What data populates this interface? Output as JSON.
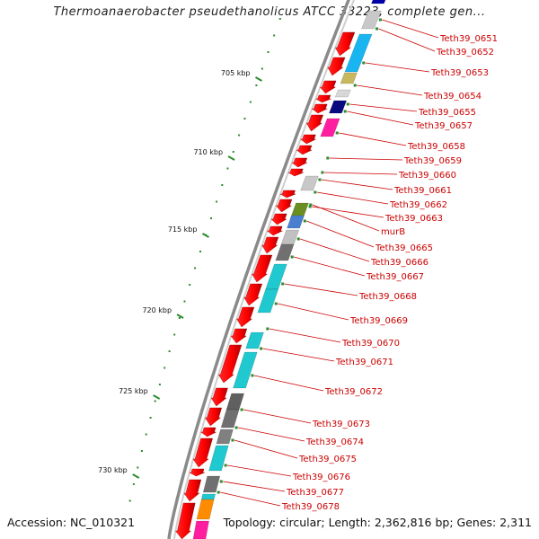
{
  "title": "Thermoanaerobacter pseudethanolicus ATCC 33223, complete gen...",
  "footer": {
    "accession": "Accession: NC_010321",
    "summary": "Topology: circular; Length: 2,362,816 bp; Genes: 2,311"
  },
  "scale_labels": [
    "705 kbp",
    "710 kbp",
    "715 kbp",
    "720 kbp",
    "725 kbp",
    "730 kbp"
  ],
  "gene_labels": [
    "Teth39_0651",
    "Teth39_0652",
    "Teth39_0653",
    "Teth39_0654",
    "Teth39_0655",
    "Teth39_0657",
    "Teth39_0658",
    "Teth39_0659",
    "Teth39_0660",
    "Teth39_0661",
    "Teth39_0662",
    "Teth39_0663",
    "murB",
    "Teth39_0665",
    "Teth39_0666",
    "Teth39_0667",
    "Teth39_0668",
    "Teth39_0669",
    "Teth39_0670",
    "Teth39_0671",
    "Teth39_0672",
    "Teth39_0673",
    "Teth39_0674",
    "Teth39_0675",
    "Teth39_0676",
    "Teth39_0677",
    "Teth39_0678"
  ],
  "colors": {
    "label_red": "#cc0000",
    "gene_red": "#ff0000",
    "tick_green": "#2e8b2e",
    "backbone_gray": "#8a8a8a"
  }
}
